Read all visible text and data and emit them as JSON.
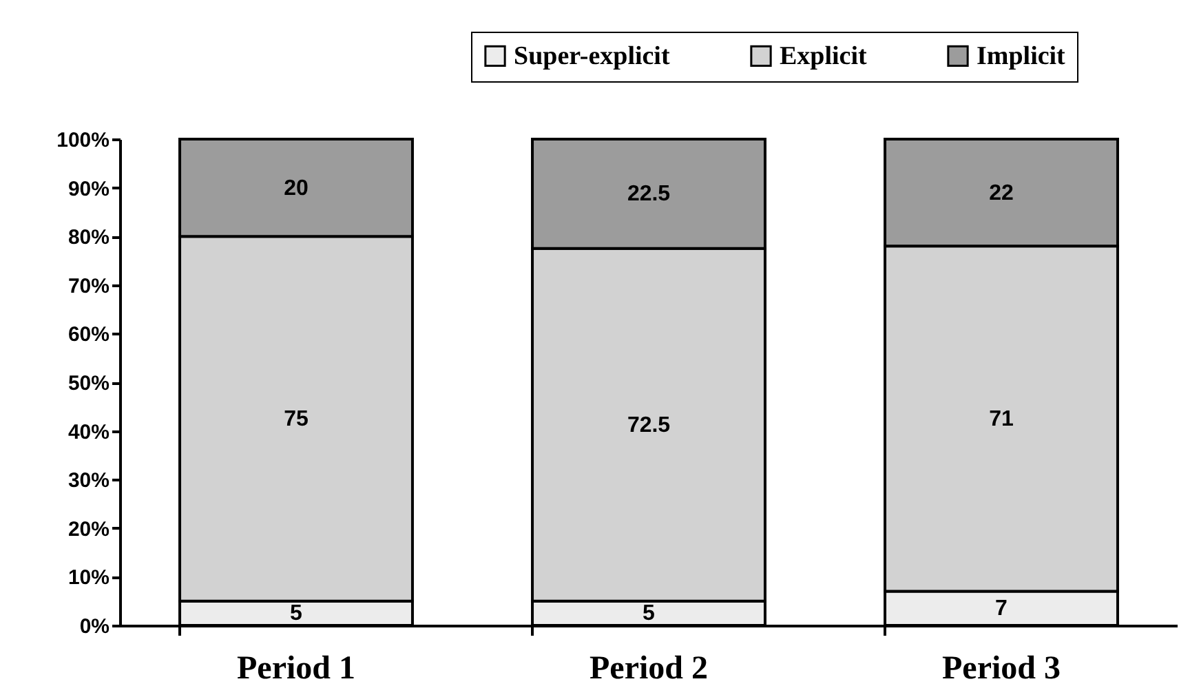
{
  "chart_data": {
    "type": "bar",
    "stacked": true,
    "data_labels": true,
    "legend": "top right",
    "grid": false,
    "categories": [
      "Period 1",
      "Period 2",
      "Period 3"
    ],
    "series": [
      {
        "name": "Super-explicit",
        "color": "#ececec",
        "values": [
          5,
          5,
          7
        ]
      },
      {
        "name": "Explicit",
        "color": "#d2d2d2",
        "values": [
          75,
          72.5,
          71
        ]
      },
      {
        "name": "Implicit",
        "color": "#9c9c9c",
        "values": [
          20,
          22.5,
          22
        ]
      }
    ],
    "ylim": [
      0,
      100
    ],
    "yticks": [
      {
        "value": 0,
        "label": "0%"
      },
      {
        "value": 10,
        "label": "10%"
      },
      {
        "value": 20,
        "label": "20%"
      },
      {
        "value": 30,
        "label": "30%"
      },
      {
        "value": 40,
        "label": "40%"
      },
      {
        "value": 50,
        "label": "50%"
      },
      {
        "value": 60,
        "label": "60%"
      },
      {
        "value": 70,
        "label": "70%"
      },
      {
        "value": 80,
        "label": "80%"
      },
      {
        "value": 90,
        "label": "90%"
      },
      {
        "value": 100,
        "label": "100%"
      }
    ]
  }
}
